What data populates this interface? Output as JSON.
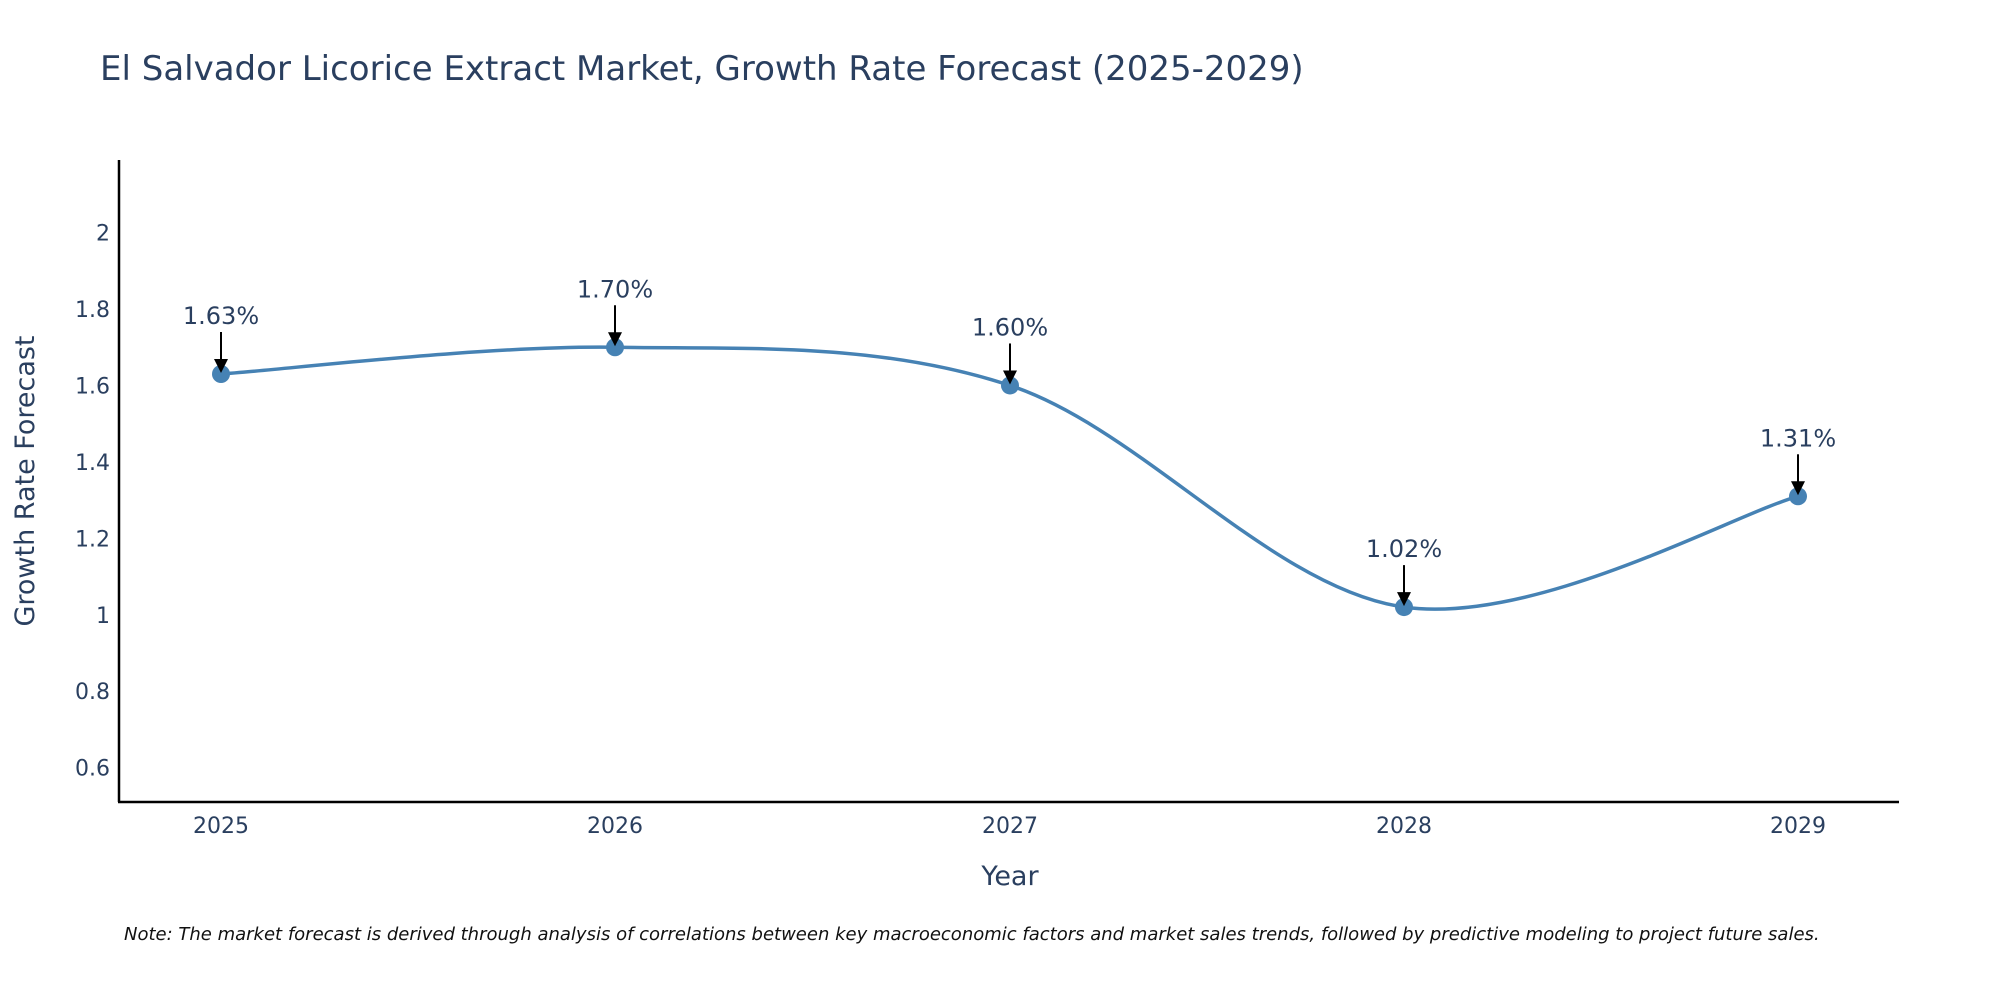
{
  "chart_data": {
    "type": "line",
    "title": "El Salvador Licorice Extract Market, Growth Rate Forecast (2025-2029)",
    "xlabel": "Year",
    "ylabel": "Growth Rate Forecast",
    "categories": [
      "2025",
      "2026",
      "2027",
      "2028",
      "2029"
    ],
    "series": [
      {
        "name": "Growth Rate Forecast",
        "values": [
          1.63,
          1.7,
          1.6,
          1.02,
          1.31
        ]
      }
    ],
    "data_labels": [
      "1.63%",
      "1.70%",
      "1.60%",
      "1.02%",
      "1.31%"
    ],
    "yticks": [
      0.6,
      0.8,
      1,
      1.2,
      1.4,
      1.6,
      1.8,
      2
    ],
    "ytick_labels": [
      "0.6",
      "0.8",
      "1",
      "1.2",
      "1.4",
      "1.6",
      "1.8",
      "2"
    ],
    "ylim": [
      0.51,
      2.19
    ],
    "grid": false,
    "note": "Note: The market forecast is derived through analysis of correlations between key macroeconomic factors and market sales trends, followed by predictive modeling to project future sales."
  },
  "colors": {
    "line": "#4682b4",
    "marker": "#4682b4",
    "axis": "#000000",
    "text": "#2a3f5f"
  }
}
